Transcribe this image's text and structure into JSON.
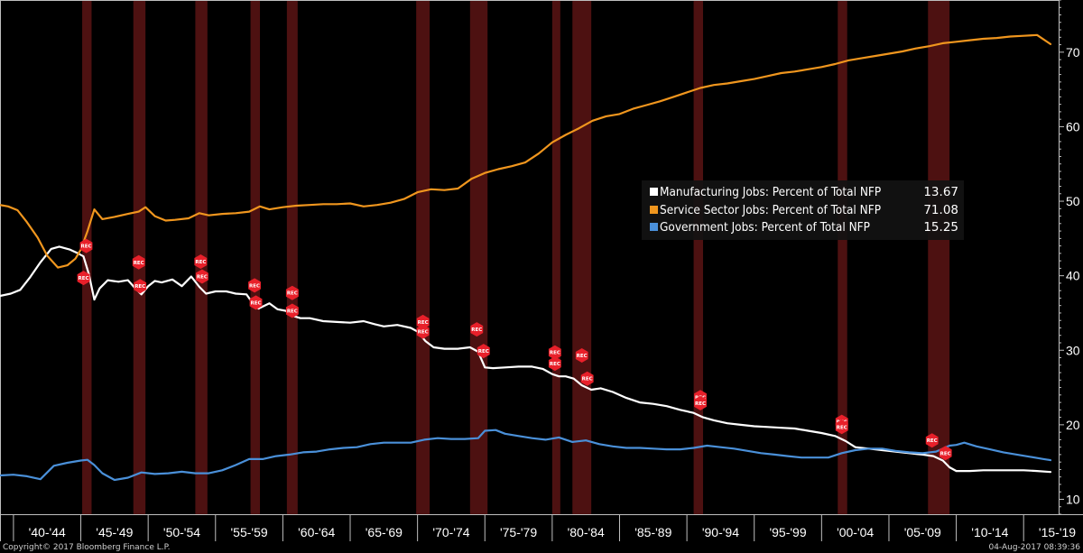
{
  "chart_data": {
    "type": "line",
    "title": "",
    "xlabel": "",
    "ylabel": "",
    "ylim": [
      8,
      77
    ],
    "y_axis_position": "right",
    "y_ticks": [
      10,
      20,
      30,
      40,
      50,
      60,
      70
    ],
    "x_range": [
      1939.0,
      2017.6
    ],
    "x_tick_labels": [
      "'40-'44",
      "'45-'49",
      "'50-'54",
      "'55-'59",
      "'60-'64",
      "'65-'69",
      "'70-'74",
      "'75-'79",
      "'80-'84",
      "'85-'89",
      "'90-'94",
      "'95-'99",
      "'00-'04",
      "'05-'09",
      "'10-'14",
      "'15-'19"
    ],
    "x_tick_starts": [
      1940,
      1945,
      1950,
      1955,
      1960,
      1965,
      1970,
      1975,
      1980,
      1985,
      1990,
      1995,
      2000,
      2005,
      2010,
      2015
    ],
    "background": "#000000",
    "grid": false,
    "legend_position": "center-right",
    "recession_marker_label": "REC",
    "recession_color": "#5a1414",
    "recession_marker_color": "#e8202a",
    "recessions": [
      [
        1945.1,
        1945.8
      ],
      [
        1948.9,
        1949.8
      ],
      [
        1953.5,
        1954.4
      ],
      [
        1957.6,
        1958.3
      ],
      [
        1960.3,
        1961.1
      ],
      [
        1969.9,
        1970.9
      ],
      [
        1973.9,
        1975.2
      ],
      [
        1980.0,
        1980.6
      ],
      [
        1981.5,
        1982.9
      ],
      [
        1990.5,
        1991.2
      ],
      [
        2001.2,
        2001.9
      ],
      [
        2007.9,
        2009.5
      ]
    ],
    "series": [
      {
        "name": "Manufacturing Jobs: Percent of Total NFP",
        "last_value": "13.67",
        "color": "#ffffff",
        "x": [
          1939.0,
          1939.8,
          1940.5,
          1941.2,
          1942.0,
          1942.8,
          1943.4,
          1944.2,
          1944.8,
          1945.2,
          1945.6,
          1946.0,
          1946.4,
          1947.0,
          1947.8,
          1948.5,
          1949.0,
          1949.5,
          1950.0,
          1950.5,
          1951.0,
          1951.8,
          1952.5,
          1953.2,
          1953.8,
          1954.3,
          1955.0,
          1955.8,
          1956.5,
          1957.3,
          1957.8,
          1958.2,
          1959.0,
          1959.6,
          1960.2,
          1960.8,
          1961.3,
          1962.0,
          1963.0,
          1964.0,
          1965.0,
          1966.0,
          1966.8,
          1967.5,
          1968.5,
          1969.5,
          1970.0,
          1970.6,
          1971.2,
          1972.0,
          1973.0,
          1973.9,
          1974.5,
          1975.0,
          1975.6,
          1976.5,
          1977.5,
          1978.5,
          1979.3,
          1980.0,
          1980.5,
          1981.0,
          1981.6,
          1982.2,
          1982.9,
          1983.6,
          1984.5,
          1985.5,
          1986.5,
          1987.5,
          1988.5,
          1989.5,
          1990.5,
          1991.2,
          1992.0,
          1993.0,
          1994.0,
          1995.0,
          1996.0,
          1997.0,
          1998.0,
          1999.0,
          2000.0,
          2001.0,
          2001.8,
          2002.5,
          2003.5,
          2004.5,
          2005.5,
          2006.5,
          2007.5,
          2008.3,
          2009.0,
          2009.5,
          2010.0,
          2011.0,
          2012.0,
          2013.0,
          2014.0,
          2015.0,
          2016.0,
          2017.0
        ],
        "y": [
          37.3,
          37.6,
          38.1,
          39.7,
          41.8,
          43.6,
          43.9,
          43.5,
          43.0,
          42.6,
          40.2,
          36.8,
          38.3,
          39.4,
          39.2,
          39.4,
          38.4,
          37.5,
          38.6,
          39.3,
          39.1,
          39.5,
          38.6,
          39.9,
          38.5,
          37.6,
          37.9,
          37.9,
          37.6,
          37.5,
          36.2,
          35.6,
          36.3,
          35.5,
          35.3,
          34.6,
          34.3,
          34.3,
          33.9,
          33.8,
          33.7,
          33.9,
          33.5,
          33.2,
          33.4,
          33.0,
          32.5,
          31.2,
          30.4,
          30.2,
          30.2,
          30.4,
          29.8,
          27.7,
          27.6,
          27.7,
          27.8,
          27.8,
          27.5,
          26.8,
          26.5,
          26.5,
          26.2,
          25.3,
          24.7,
          24.9,
          24.4,
          23.6,
          23.0,
          22.8,
          22.5,
          22.0,
          21.6,
          21.0,
          20.6,
          20.2,
          20.0,
          19.8,
          19.7,
          19.6,
          19.5,
          19.2,
          18.9,
          18.5,
          17.8,
          17.0,
          16.8,
          16.6,
          16.4,
          16.2,
          16.0,
          15.8,
          15.2,
          14.3,
          13.8,
          13.8,
          13.9,
          13.9,
          13.9,
          13.9,
          13.8,
          13.67
        ]
      },
      {
        "name": "Service Sector Jobs: Percent of Total NFP",
        "last_value": "71.08",
        "color": "#f0961e",
        "x": [
          1939.0,
          1939.6,
          1940.3,
          1941.0,
          1941.8,
          1942.5,
          1943.3,
          1944.0,
          1944.6,
          1945.0,
          1945.5,
          1946.0,
          1946.6,
          1947.5,
          1948.5,
          1949.3,
          1949.8,
          1950.5,
          1951.3,
          1952.0,
          1953.0,
          1953.8,
          1954.5,
          1955.5,
          1956.5,
          1957.5,
          1958.3,
          1959.0,
          1960.0,
          1961.0,
          1962.0,
          1963.0,
          1964.0,
          1965.0,
          1966.0,
          1967.0,
          1968.0,
          1969.0,
          1970.0,
          1971.0,
          1972.0,
          1973.0,
          1974.0,
          1975.0,
          1976.0,
          1977.0,
          1978.0,
          1979.0,
          1980.0,
          1981.0,
          1982.0,
          1983.0,
          1984.0,
          1985.0,
          1986.0,
          1987.0,
          1988.0,
          1989.0,
          1990.0,
          1991.0,
          1992.0,
          1993.0,
          1994.0,
          1995.0,
          1996.0,
          1997.0,
          1998.0,
          1999.0,
          2000.0,
          2001.0,
          2002.0,
          2003.0,
          2004.0,
          2005.0,
          2006.0,
          2007.0,
          2008.0,
          2009.0,
          2010.0,
          2011.0,
          2012.0,
          2013.0,
          2014.0,
          2015.0,
          2016.0,
          2017.0
        ],
        "y": [
          49.5,
          49.3,
          48.8,
          47.2,
          45.1,
          42.7,
          41.1,
          41.4,
          42.3,
          43.5,
          46.0,
          48.9,
          47.6,
          47.9,
          48.3,
          48.6,
          49.2,
          48.0,
          47.4,
          47.5,
          47.7,
          48.4,
          48.1,
          48.3,
          48.4,
          48.6,
          49.3,
          48.9,
          49.2,
          49.4,
          49.5,
          49.6,
          49.6,
          49.7,
          49.3,
          49.5,
          49.8,
          50.3,
          51.2,
          51.6,
          51.5,
          51.7,
          53.0,
          53.8,
          54.3,
          54.7,
          55.2,
          56.4,
          57.9,
          58.9,
          59.8,
          60.8,
          61.4,
          61.7,
          62.4,
          62.9,
          63.4,
          64.0,
          64.6,
          65.2,
          65.6,
          65.8,
          66.1,
          66.4,
          66.8,
          67.2,
          67.4,
          67.7,
          68.0,
          68.4,
          68.9,
          69.2,
          69.5,
          69.8,
          70.1,
          70.5,
          70.8,
          71.2,
          71.4,
          71.6,
          71.8,
          71.9,
          72.1,
          72.2,
          72.3,
          71.08
        ]
      },
      {
        "name": "Government Jobs: Percent of Total NFP",
        "last_value": "15.25",
        "color": "#4a90d9",
        "x": [
          1939.0,
          1940.0,
          1941.0,
          1942.0,
          1943.0,
          1944.0,
          1945.0,
          1945.5,
          1946.0,
          1946.6,
          1947.5,
          1948.5,
          1949.5,
          1950.5,
          1951.5,
          1952.5,
          1953.5,
          1954.5,
          1955.5,
          1956.5,
          1957.5,
          1958.5,
          1959.5,
          1960.5,
          1961.5,
          1962.5,
          1963.5,
          1964.5,
          1965.5,
          1966.5,
          1967.5,
          1968.5,
          1969.5,
          1970.5,
          1971.5,
          1972.5,
          1973.5,
          1974.5,
          1975.0,
          1975.8,
          1976.5,
          1977.5,
          1978.5,
          1979.5,
          1980.5,
          1981.5,
          1982.5,
          1983.5,
          1984.5,
          1985.5,
          1986.5,
          1987.5,
          1988.5,
          1989.5,
          1990.5,
          1991.5,
          1992.5,
          1993.5,
          1994.5,
          1995.5,
          1996.5,
          1997.5,
          1998.5,
          1999.5,
          2000.5,
          2001.5,
          2002.5,
          2003.5,
          2004.5,
          2005.5,
          2006.5,
          2007.5,
          2008.5,
          2009.5,
          2010.0,
          2010.6,
          2011.5,
          2012.5,
          2013.5,
          2014.5,
          2015.5,
          2016.5,
          2017.0
        ],
        "y": [
          13.2,
          13.3,
          13.1,
          12.7,
          14.5,
          14.9,
          15.2,
          15.3,
          14.6,
          13.5,
          12.6,
          12.9,
          13.6,
          13.4,
          13.5,
          13.7,
          13.5,
          13.5,
          13.9,
          14.6,
          15.4,
          15.4,
          15.8,
          16.0,
          16.3,
          16.4,
          16.7,
          16.9,
          17.0,
          17.4,
          17.6,
          17.6,
          17.6,
          18.0,
          18.2,
          18.1,
          18.1,
          18.2,
          19.2,
          19.3,
          18.8,
          18.5,
          18.2,
          18.0,
          18.3,
          17.7,
          17.9,
          17.4,
          17.1,
          16.9,
          16.9,
          16.8,
          16.7,
          16.7,
          16.9,
          17.2,
          17.0,
          16.8,
          16.5,
          16.2,
          16.0,
          15.8,
          15.6,
          15.6,
          15.6,
          16.2,
          16.6,
          16.8,
          16.8,
          16.5,
          16.3,
          16.2,
          16.4,
          17.2,
          17.3,
          17.6,
          17.1,
          16.7,
          16.3,
          16.0,
          15.7,
          15.4,
          15.25
        ]
      }
    ],
    "recession_markers": [
      [
        1945.4,
        44
      ],
      [
        1945.2,
        39.7
      ],
      [
        1949.3,
        41.8
      ],
      [
        1949.4,
        38.6
      ],
      [
        1953.9,
        41.9
      ],
      [
        1954.0,
        39.9
      ],
      [
        1957.9,
        38.7
      ],
      [
        1958.0,
        36.4
      ],
      [
        1960.7,
        37.7
      ],
      [
        1960.7,
        35.3
      ],
      [
        1970.4,
        33.8
      ],
      [
        1970.4,
        32.5
      ],
      [
        1974.4,
        32.8
      ],
      [
        1974.9,
        29.9
      ],
      [
        1980.2,
        29.7
      ],
      [
        1980.2,
        28.2
      ],
      [
        1982.2,
        29.3
      ],
      [
        1982.6,
        26.2
      ],
      [
        1991.0,
        23.7
      ],
      [
        1991.0,
        22.9
      ],
      [
        2001.5,
        20.4
      ],
      [
        2001.5,
        19.7
      ],
      [
        2008.2,
        17.9
      ],
      [
        2009.2,
        16.2
      ]
    ]
  },
  "footer": {
    "copyright": "Copyright© 2017 Bloomberg Finance L.P.",
    "timestamp": "04-Aug-2017 08:39:36"
  },
  "icons": {
    "legend_swatch": "square-swatch",
    "recession_marker": "hexagon-rec-marker"
  }
}
